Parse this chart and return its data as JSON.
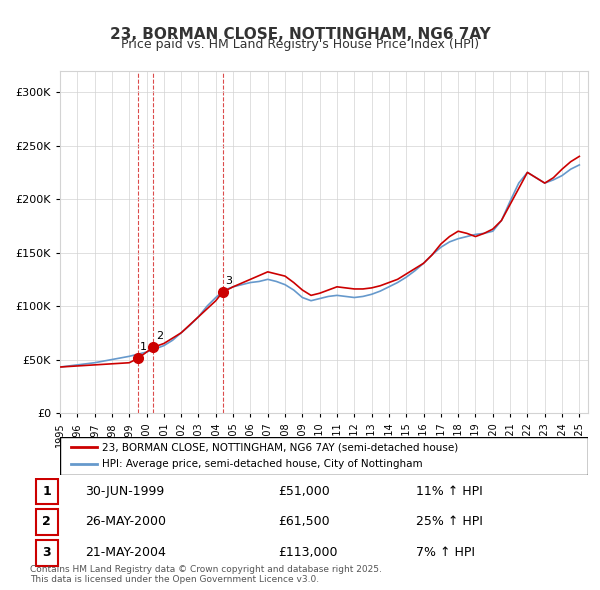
{
  "title1": "23, BORMAN CLOSE, NOTTINGHAM, NG6 7AY",
  "title2": "Price paid vs. HM Land Registry's House Price Index (HPI)",
  "legend_line1": "23, BORMAN CLOSE, NOTTINGHAM, NG6 7AY (semi-detached house)",
  "legend_line2": "HPI: Average price, semi-detached house, City of Nottingham",
  "footer": "Contains HM Land Registry data © Crown copyright and database right 2025.\nThis data is licensed under the Open Government Licence v3.0.",
  "sales": [
    {
      "label": "1",
      "date_num": 1999.49,
      "price": 51000,
      "note": "30-JUN-1999",
      "hpi_pct": "11% ↑ HPI"
    },
    {
      "label": "2",
      "date_num": 2000.39,
      "price": 61500,
      "note": "26-MAY-2000",
      "hpi_pct": "25% ↑ HPI"
    },
    {
      "label": "3",
      "date_num": 2004.39,
      "price": 113000,
      "note": "21-MAY-2004",
      "hpi_pct": "7% ↑ HPI"
    }
  ],
  "property_line_color": "#cc0000",
  "hpi_line_color": "#6699cc",
  "sale_marker_color": "#cc0000",
  "sale_vline_color": "#cc0000",
  "xlim": [
    1995.0,
    2025.5
  ],
  "ylim": [
    0,
    320000
  ],
  "yticks": [
    0,
    50000,
    100000,
    150000,
    200000,
    250000,
    300000
  ],
  "ytick_labels": [
    "£0",
    "£50K",
    "£100K",
    "£150K",
    "£200K",
    "£250K",
    "£300K"
  ],
  "xticks": [
    1995,
    1996,
    1997,
    1998,
    1999,
    2000,
    2001,
    2002,
    2003,
    2004,
    2005,
    2006,
    2007,
    2008,
    2009,
    2010,
    2011,
    2012,
    2013,
    2014,
    2015,
    2016,
    2017,
    2018,
    2019,
    2020,
    2021,
    2022,
    2023,
    2024,
    2025
  ],
  "property_x": [
    1995.0,
    1995.5,
    1996.0,
    1996.5,
    1997.0,
    1997.5,
    1998.0,
    1998.5,
    1999.0,
    1999.49,
    1999.49,
    2000.39,
    2000.39,
    2001.0,
    2002.0,
    2003.0,
    2004.0,
    2004.39,
    2004.39,
    2005.0,
    2006.0,
    2007.0,
    2007.5,
    2008.0,
    2008.5,
    2009.0,
    2009.5,
    2010.0,
    2010.5,
    2011.0,
    2011.5,
    2012.0,
    2012.5,
    2013.0,
    2013.5,
    2014.0,
    2014.5,
    2015.0,
    2015.5,
    2016.0,
    2016.5,
    2017.0,
    2017.5,
    2018.0,
    2018.5,
    2019.0,
    2019.5,
    2020.0,
    2020.5,
    2021.0,
    2021.5,
    2022.0,
    2022.5,
    2023.0,
    2023.5,
    2024.0,
    2024.5,
    2025.0
  ],
  "property_y": [
    43000,
    43500,
    44000,
    44500,
    45000,
    45500,
    46000,
    46500,
    47000,
    51000,
    51000,
    61500,
    61500,
    65000,
    75000,
    90000,
    105000,
    113000,
    113000,
    118000,
    125000,
    132000,
    130000,
    128000,
    122000,
    115000,
    110000,
    112000,
    115000,
    118000,
    117000,
    116000,
    116000,
    117000,
    119000,
    122000,
    125000,
    130000,
    135000,
    140000,
    148000,
    158000,
    165000,
    170000,
    168000,
    165000,
    168000,
    172000,
    180000,
    195000,
    210000,
    225000,
    220000,
    215000,
    220000,
    228000,
    235000,
    240000
  ],
  "hpi_x": [
    1995.0,
    1995.5,
    1996.0,
    1996.5,
    1997.0,
    1997.5,
    1998.0,
    1998.5,
    1999.0,
    1999.5,
    2000.0,
    2000.5,
    2001.0,
    2001.5,
    2002.0,
    2002.5,
    2003.0,
    2003.5,
    2004.0,
    2004.5,
    2005.0,
    2005.5,
    2006.0,
    2006.5,
    2007.0,
    2007.5,
    2008.0,
    2008.5,
    2009.0,
    2009.5,
    2010.0,
    2010.5,
    2011.0,
    2011.5,
    2012.0,
    2012.5,
    2013.0,
    2013.5,
    2014.0,
    2014.5,
    2015.0,
    2015.5,
    2016.0,
    2016.5,
    2017.0,
    2017.5,
    2018.0,
    2018.5,
    2019.0,
    2019.5,
    2020.0,
    2020.5,
    2021.0,
    2021.5,
    2022.0,
    2022.5,
    2023.0,
    2023.5,
    2024.0,
    2024.5,
    2025.0
  ],
  "hpi_y": [
    43000,
    44000,
    45000,
    46000,
    47000,
    48500,
    50000,
    51500,
    53000,
    55000,
    57000,
    60000,
    63000,
    68000,
    75000,
    82000,
    90000,
    100000,
    108000,
    115000,
    118000,
    120000,
    122000,
    123000,
    125000,
    123000,
    120000,
    115000,
    108000,
    105000,
    107000,
    109000,
    110000,
    109000,
    108000,
    109000,
    111000,
    114000,
    118000,
    122000,
    127000,
    133000,
    140000,
    148000,
    155000,
    160000,
    163000,
    165000,
    167000,
    168000,
    170000,
    180000,
    198000,
    215000,
    225000,
    220000,
    215000,
    218000,
    222000,
    228000,
    232000
  ]
}
